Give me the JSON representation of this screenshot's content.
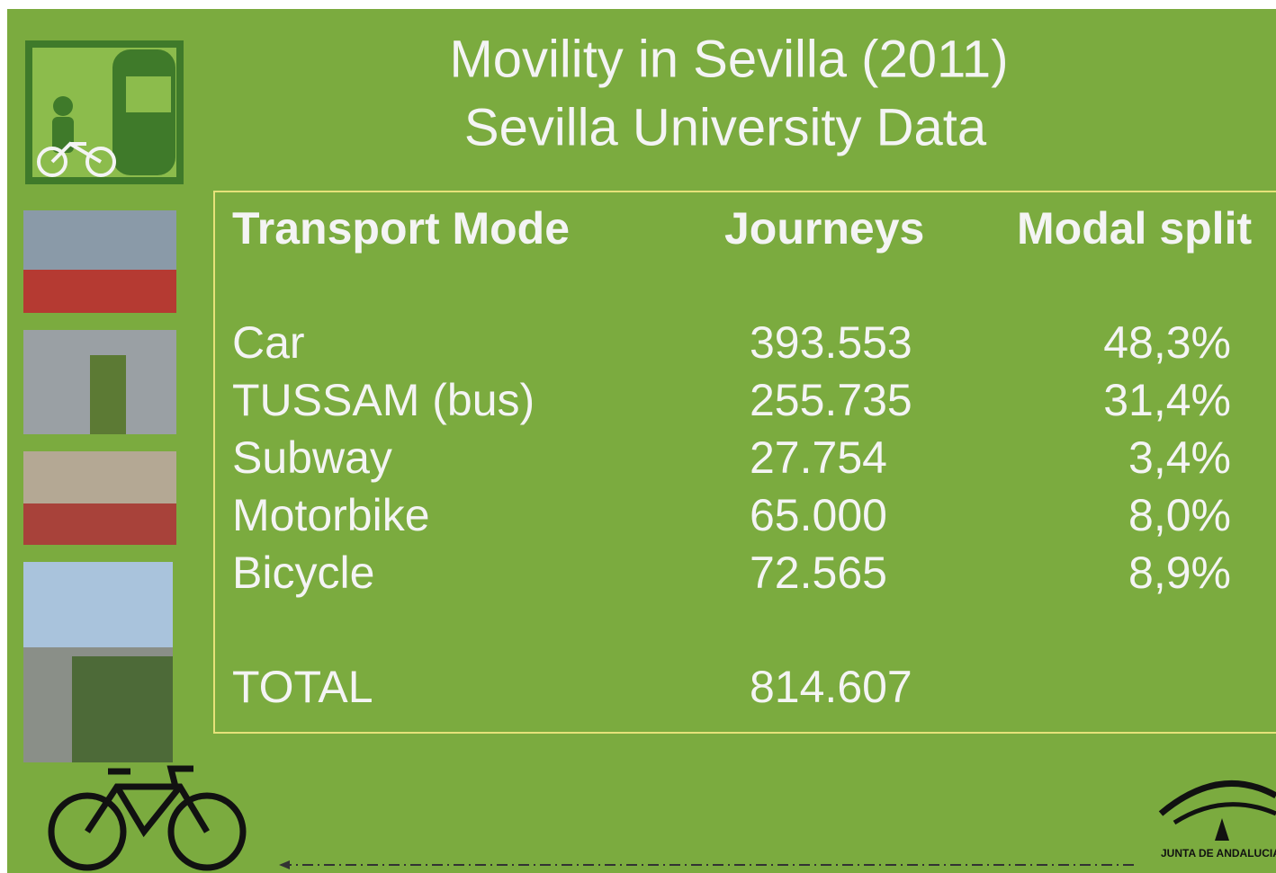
{
  "title": {
    "line1": "Movility in Sevilla (2011)",
    "line2": "Sevilla University Data"
  },
  "table": {
    "header": [
      "Transport Mode",
      "Journeys",
      "Modal split"
    ],
    "rows": [
      [
        "Car",
        "393.553",
        "48,3%"
      ],
      [
        "TUSSAM (bus)",
        "255.735",
        "31,4%"
      ],
      [
        "Subway",
        "27.754",
        "3,4%"
      ],
      [
        "Motorbike",
        "65.000",
        "8,0%"
      ],
      [
        "Bicycle",
        "72.565",
        "8,9%"
      ]
    ],
    "total": [
      "TOTAL",
      "814.607"
    ]
  },
  "logo": {
    "text": "JUNTA DE ANDALUCIA"
  }
}
